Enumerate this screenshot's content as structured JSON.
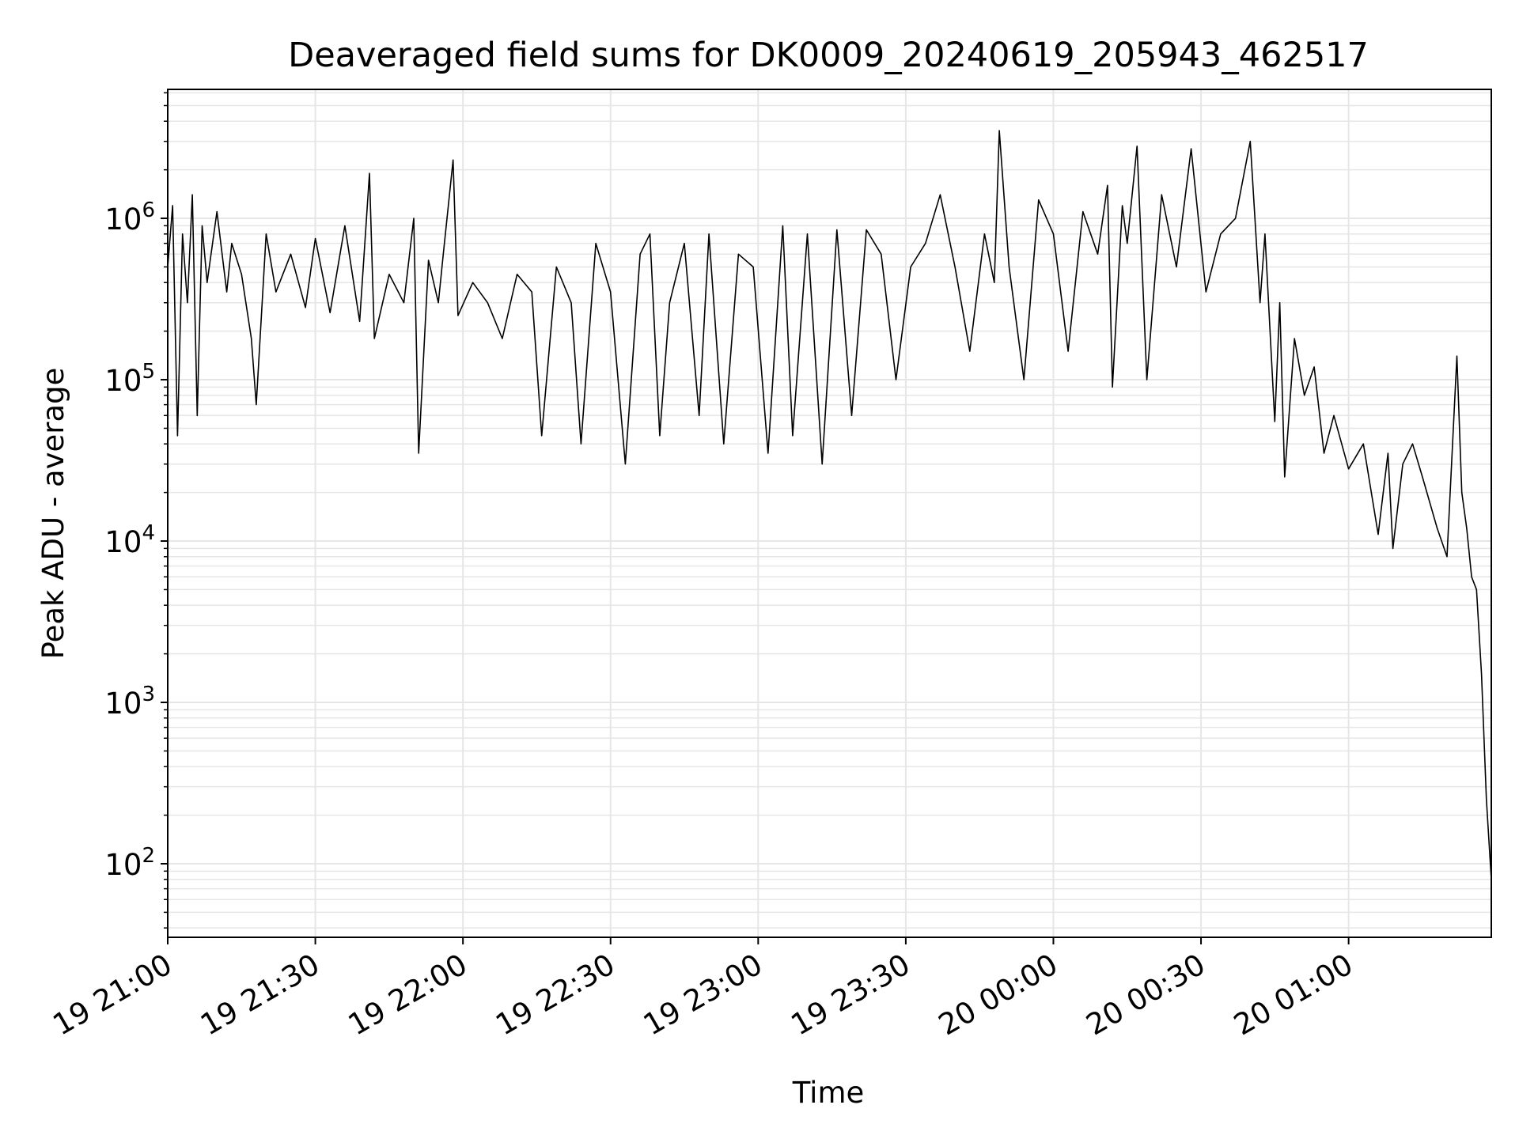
{
  "chart_data": {
    "type": "line",
    "title": "Deaveraged field sums for DK0009_20240619_205943_462517",
    "xlabel": "Time",
    "ylabel": "Peak ADU - average",
    "y_scale": "log",
    "ylim": [
      35,
      6300000
    ],
    "xlim": [
      "2024-06-19 21:00",
      "2024-06-20 01:29"
    ],
    "grid": true,
    "legend": "none",
    "line_color": "#000000",
    "grid_color": "#e6e6e6",
    "x_ticks": [
      {
        "label": "19 21:00",
        "time": "2024-06-19 21:00"
      },
      {
        "label": "19 21:30",
        "time": "2024-06-19 21:30"
      },
      {
        "label": "19 22:00",
        "time": "2024-06-19 22:00"
      },
      {
        "label": "19 22:30",
        "time": "2024-06-19 22:30"
      },
      {
        "label": "19 23:00",
        "time": "2024-06-19 23:00"
      },
      {
        "label": "19 23:30",
        "time": "2024-06-19 23:30"
      },
      {
        "label": "20 00:00",
        "time": "2024-06-20 00:00"
      },
      {
        "label": "20 00:30",
        "time": "2024-06-20 00:30"
      },
      {
        "label": "20 01:00",
        "time": "2024-06-20 01:00"
      }
    ],
    "y_ticks": [
      {
        "base": "10",
        "exp": "2",
        "value": 100
      },
      {
        "base": "10",
        "exp": "3",
        "value": 1000
      },
      {
        "base": "10",
        "exp": "4",
        "value": 10000
      },
      {
        "base": "10",
        "exp": "5",
        "value": 100000
      },
      {
        "base": "10",
        "exp": "6",
        "value": 1000000
      }
    ],
    "series": [
      {
        "x": [
          "2024-06-19 21:00",
          "2024-06-19 21:01",
          "2024-06-19 21:02",
          "2024-06-19 21:03",
          "2024-06-19 21:04",
          "2024-06-19 21:05",
          "2024-06-19 21:06",
          "2024-06-19 21:07",
          "2024-06-19 21:08",
          "2024-06-19 21:10",
          "2024-06-19 21:12",
          "2024-06-19 21:13",
          "2024-06-19 21:15",
          "2024-06-19 21:17",
          "2024-06-19 21:18",
          "2024-06-19 21:20",
          "2024-06-19 21:22",
          "2024-06-19 21:25",
          "2024-06-19 21:28",
          "2024-06-19 21:30",
          "2024-06-19 21:33",
          "2024-06-19 21:36",
          "2024-06-19 21:39",
          "2024-06-19 21:41",
          "2024-06-19 21:42",
          "2024-06-19 21:45",
          "2024-06-19 21:48",
          "2024-06-19 21:50",
          "2024-06-19 21:51",
          "2024-06-19 21:53",
          "2024-06-19 21:55",
          "2024-06-19 21:56",
          "2024-06-19 21:58",
          "2024-06-19 21:59",
          "2024-06-19 22:02",
          "2024-06-19 22:05",
          "2024-06-19 22:08",
          "2024-06-19 22:11",
          "2024-06-19 22:14",
          "2024-06-19 22:16",
          "2024-06-19 22:19",
          "2024-06-19 22:22",
          "2024-06-19 22:24",
          "2024-06-19 22:27",
          "2024-06-19 22:30",
          "2024-06-19 22:33",
          "2024-06-19 22:36",
          "2024-06-19 22:38",
          "2024-06-19 22:40",
          "2024-06-19 22:42",
          "2024-06-19 22:45",
          "2024-06-19 22:48",
          "2024-06-19 22:50",
          "2024-06-19 22:53",
          "2024-06-19 22:56",
          "2024-06-19 22:59",
          "2024-06-19 23:02",
          "2024-06-19 23:05",
          "2024-06-19 23:07",
          "2024-06-19 23:10",
          "2024-06-19 23:13",
          "2024-06-19 23:16",
          "2024-06-19 23:19",
          "2024-06-19 23:22",
          "2024-06-19 23:25",
          "2024-06-19 23:28",
          "2024-06-19 23:31",
          "2024-06-19 23:34",
          "2024-06-19 23:37",
          "2024-06-19 23:40",
          "2024-06-19 23:43",
          "2024-06-19 23:46",
          "2024-06-19 23:48",
          "2024-06-19 23:49",
          "2024-06-19 23:51",
          "2024-06-19 23:54",
          "2024-06-19 23:57",
          "2024-06-20 00:00",
          "2024-06-20 00:03",
          "2024-06-20 00:06",
          "2024-06-20 00:09",
          "2024-06-20 00:11",
          "2024-06-20 00:12",
          "2024-06-20 00:14",
          "2024-06-20 00:15",
          "2024-06-20 00:17",
          "2024-06-20 00:19",
          "2024-06-20 00:22",
          "2024-06-20 00:25",
          "2024-06-20 00:28",
          "2024-06-20 00:31",
          "2024-06-20 00:34",
          "2024-06-20 00:37",
          "2024-06-20 00:40",
          "2024-06-20 00:42",
          "2024-06-20 00:43",
          "2024-06-20 00:45",
          "2024-06-20 00:46",
          "2024-06-20 00:47",
          "2024-06-20 00:49",
          "2024-06-20 00:51",
          "2024-06-20 00:53",
          "2024-06-20 00:55",
          "2024-06-20 00:57",
          "2024-06-20 01:00",
          "2024-06-20 01:03",
          "2024-06-20 01:06",
          "2024-06-20 01:08",
          "2024-06-20 01:09",
          "2024-06-20 01:11",
          "2024-06-20 01:13",
          "2024-06-20 01:15",
          "2024-06-20 01:18",
          "2024-06-20 01:20",
          "2024-06-20 01:22",
          "2024-06-20 01:23",
          "2024-06-20 01:24",
          "2024-06-20 01:25",
          "2024-06-20 01:26",
          "2024-06-20 01:27",
          "2024-06-20 01:28",
          "2024-06-20 01:29"
        ],
        "values": [
          500000,
          1200000,
          45000,
          800000,
          300000,
          1400000,
          60000,
          900000,
          400000,
          1100000,
          350000,
          700000,
          450000,
          180000,
          70000,
          800000,
          350000,
          600000,
          280000,
          750000,
          260000,
          900000,
          230000,
          1900000,
          180000,
          450000,
          300000,
          1000000,
          35000,
          550000,
          300000,
          600000,
          2300000,
          250000,
          400000,
          300000,
          180000,
          450000,
          350000,
          45000,
          500000,
          300000,
          40000,
          700000,
          350000,
          30000,
          600000,
          800000,
          45000,
          300000,
          700000,
          60000,
          800000,
          40000,
          600000,
          500000,
          35000,
          900000,
          45000,
          800000,
          30000,
          850000,
          60000,
          850000,
          600000,
          100000,
          500000,
          700000,
          1400000,
          500000,
          150000,
          800000,
          400000,
          3500000,
          500000,
          100000,
          1300000,
          800000,
          150000,
          1100000,
          600000,
          1600000,
          90000,
          1200000,
          700000,
          2800000,
          100000,
          1400000,
          500000,
          2700000,
          350000,
          800000,
          1000000,
          3000000,
          300000,
          800000,
          55000,
          300000,
          25000,
          180000,
          80000,
          120000,
          35000,
          60000,
          28000,
          40000,
          11000,
          35000,
          9000,
          30000,
          40000,
          25000,
          12000,
          8000,
          140000,
          20000,
          12000,
          6000,
          5000,
          1500,
          250,
          80
        ]
      }
    ]
  }
}
